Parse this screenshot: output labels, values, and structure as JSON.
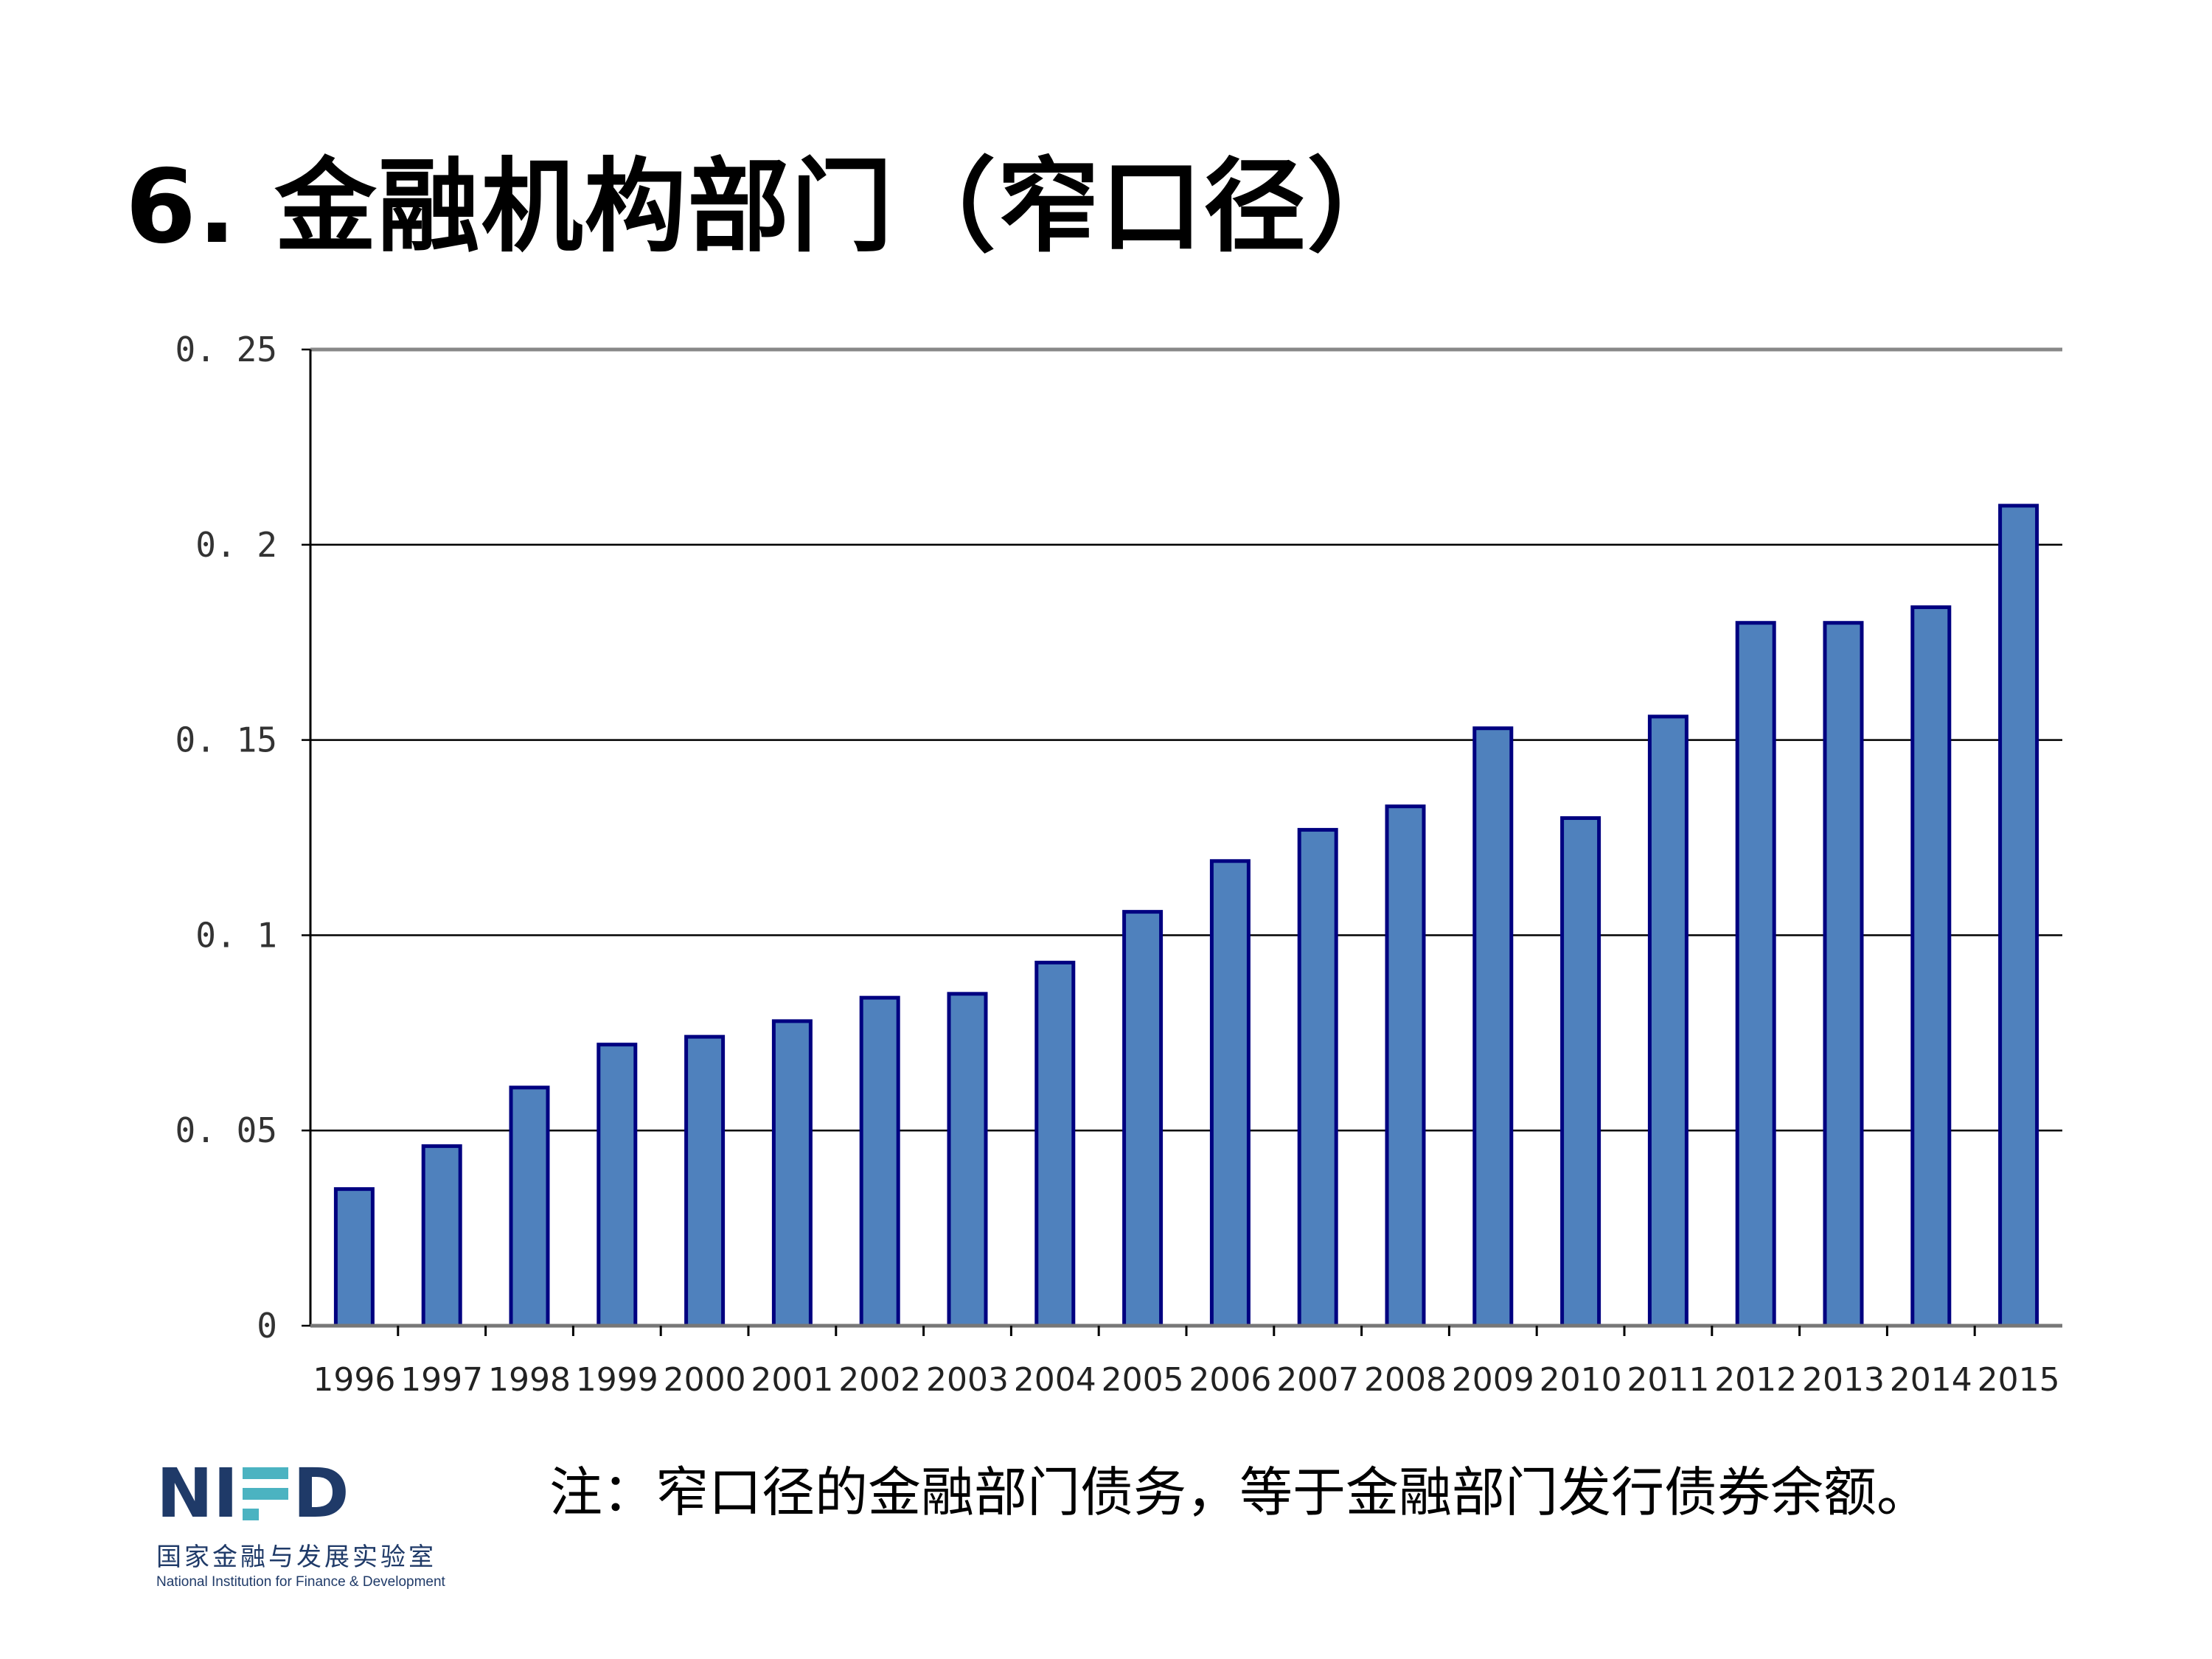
{
  "title": "6. 金融机构部门（窄口径）",
  "note": "注：窄口径的金融部门债务，等于金融部门发行债券余额。",
  "logo": {
    "mark": "NIFD",
    "cn": "国家金融与发展实验室",
    "en": "National Institution for Finance & Development",
    "colors": {
      "navy": "#1f3a68",
      "teal": "#4bb3c1"
    }
  },
  "chart_data": {
    "type": "bar",
    "title": "",
    "xlabel": "",
    "ylabel": "",
    "ylim": [
      0,
      0.25
    ],
    "yticks": [
      "0",
      "0. 05",
      "0. 1",
      "0. 15",
      "0. 2",
      "0. 25"
    ],
    "ytick_values": [
      0,
      0.05,
      0.1,
      0.15,
      0.2,
      0.25
    ],
    "grid": true,
    "legend": "none",
    "bar_color": "#4f81bd",
    "bar_edge_color": "#000080",
    "categories": [
      "1996",
      "1997",
      "1998",
      "1999",
      "2000",
      "2001",
      "2002",
      "2003",
      "2004",
      "2005",
      "2006",
      "2007",
      "2008",
      "2009",
      "2010",
      "2011",
      "2012",
      "2013",
      "2014",
      "2015"
    ],
    "values": [
      0.035,
      0.046,
      0.061,
      0.072,
      0.074,
      0.078,
      0.084,
      0.085,
      0.093,
      0.106,
      0.119,
      0.127,
      0.133,
      0.153,
      0.13,
      0.156,
      0.18,
      0.18,
      0.184,
      0.21
    ]
  }
}
